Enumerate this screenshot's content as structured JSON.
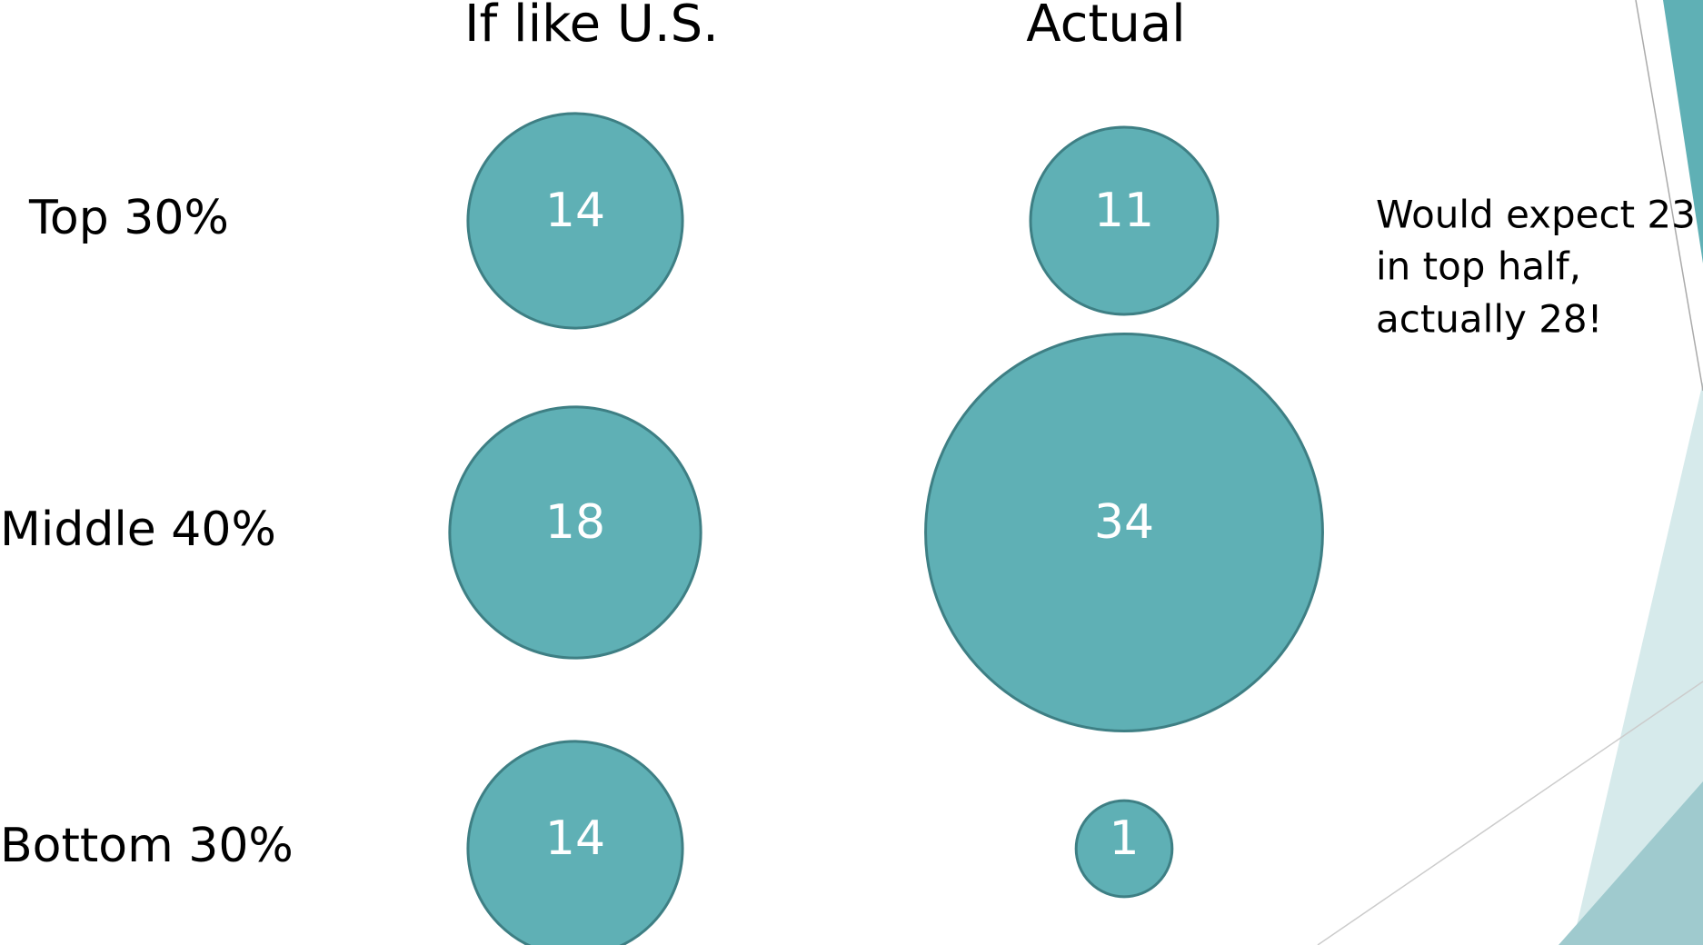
{
  "chart_data": {
    "type": "bubble",
    "categories": [
      "Top 30%",
      "Middle 40%",
      "Bottom 30%"
    ],
    "series": [
      {
        "name": "If like U.S.",
        "color": "#5fb0b5",
        "values": [
          14,
          18,
          14
        ]
      },
      {
        "name": "Actual",
        "color": "#5fb0b5",
        "values": [
          11,
          34,
          1
        ]
      }
    ],
    "annotation": [
      "Would expect 23",
      "in top half,",
      "actually 28!"
    ]
  }
}
